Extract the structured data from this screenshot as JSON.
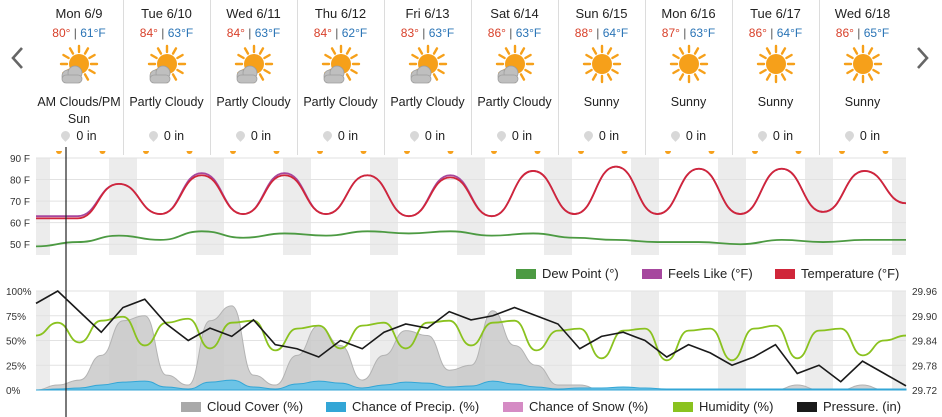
{
  "forecast": {
    "days": [
      {
        "date": "Mon 6/9",
        "high": "80°",
        "low": "61°F",
        "condition": "AM Clouds/PM Sun",
        "icon": "sun-cloud-icon",
        "precip": "0 in"
      },
      {
        "date": "Tue 6/10",
        "high": "84°",
        "low": "63°F",
        "condition": "Partly Cloudy",
        "icon": "sun-cloud-icon",
        "precip": "0 in"
      },
      {
        "date": "Wed 6/11",
        "high": "84°",
        "low": "63°F",
        "condition": "Partly Cloudy",
        "icon": "sun-cloud-icon",
        "precip": "0 in"
      },
      {
        "date": "Thu 6/12",
        "high": "84°",
        "low": "62°F",
        "condition": "Partly Cloudy",
        "icon": "sun-cloud-icon",
        "precip": "0 in"
      },
      {
        "date": "Fri 6/13",
        "high": "83°",
        "low": "63°F",
        "condition": "Partly Cloudy",
        "icon": "sun-cloud-icon",
        "precip": "0 in"
      },
      {
        "date": "Sat 6/14",
        "high": "86°",
        "low": "63°F",
        "condition": "Partly Cloudy",
        "icon": "sun-cloud-icon",
        "precip": "0 in"
      },
      {
        "date": "Sun 6/15",
        "high": "88°",
        "low": "64°F",
        "condition": "Sunny",
        "icon": "sun-icon",
        "precip": "0 in"
      },
      {
        "date": "Mon 6/16",
        "high": "87°",
        "low": "63°F",
        "condition": "Sunny",
        "icon": "sun-icon",
        "precip": "0 in"
      },
      {
        "date": "Tue 6/17",
        "high": "86°",
        "low": "64°F",
        "condition": "Sunny",
        "icon": "sun-icon",
        "precip": "0 in"
      },
      {
        "date": "Wed 6/18",
        "high": "86°",
        "low": "65°F",
        "condition": "Sunny",
        "icon": "sun-icon",
        "precip": "0 in"
      }
    ]
  },
  "colors": {
    "temperature": "#d0263a",
    "feels_like": "#a6479e",
    "dew_point": "#4c9a42",
    "cloud_cover": "#a9a9a9",
    "precip": "#33a6d6",
    "snow": "#d58bc4",
    "humidity": "#8ac21f",
    "pressure": "#1a1a1a",
    "sun": "#f6a01a"
  },
  "chart_data": [
    {
      "type": "line",
      "y_ticks": [
        "90 F",
        "80 F",
        "70 F",
        "60 F",
        "50 F"
      ],
      "ylim": [
        45,
        90
      ],
      "legend": [
        "Dew Point (°)",
        "Feels Like (°F)",
        "Temperature (°F)"
      ],
      "legend_position": "bottom-right",
      "series": [
        {
          "name": "Temperature (°F)",
          "values": [
            62,
            62,
            78,
            64,
            82,
            64,
            82,
            64,
            82,
            63,
            81,
            63,
            84,
            64,
            86,
            64,
            85,
            64,
            85,
            65,
            84,
            69
          ]
        },
        {
          "name": "Feels Like (°F)",
          "values": [
            63,
            63,
            78,
            64,
            83,
            64,
            83,
            64,
            82,
            63,
            82,
            63,
            84,
            64,
            86,
            64,
            85,
            64,
            85,
            65,
            84,
            69
          ]
        },
        {
          "name": "Dew Point (°)",
          "values": [
            49,
            51,
            54,
            52,
            56,
            53,
            55,
            54,
            56,
            55,
            56,
            54,
            55,
            53,
            52,
            51,
            51,
            50,
            52,
            51,
            52,
            52
          ]
        }
      ]
    },
    {
      "type": "area",
      "y_ticks_left": [
        "100%",
        "75%",
        "50%",
        "25%",
        "0%"
      ],
      "y_ticks_right": [
        "29.96",
        "29.90",
        "29.84",
        "29.78",
        "29.72"
      ],
      "legend": [
        "Cloud Cover (%)",
        "Chance of Precip. (%)",
        "Chance of Snow (%)",
        "Humidity (%)",
        "Pressure. (in)"
      ],
      "legend_position": "bottom-right",
      "series": [
        {
          "name": "Cloud Cover (%)",
          "values": [
            0,
            5,
            10,
            35,
            70,
            75,
            15,
            5,
            70,
            85,
            15,
            5,
            35,
            65,
            45,
            10,
            35,
            60,
            55,
            20,
            25,
            80,
            45,
            25,
            5,
            5,
            0,
            0,
            0,
            0,
            0,
            0,
            0,
            0,
            0,
            5,
            0,
            0,
            5,
            0,
            0
          ]
        },
        {
          "name": "Chance of Precip. (%)",
          "values": [
            0,
            1,
            2,
            5,
            8,
            9,
            3,
            1,
            8,
            10,
            3,
            1,
            6,
            9,
            7,
            2,
            5,
            8,
            7,
            3,
            4,
            9,
            6,
            3,
            1,
            2,
            2,
            3,
            2,
            1,
            1,
            1,
            1,
            1,
            1,
            1,
            1,
            1,
            1,
            1,
            1
          ]
        },
        {
          "name": "Humidity (%)",
          "values": [
            55,
            68,
            48,
            70,
            74,
            45,
            68,
            72,
            42,
            68,
            70,
            40,
            62,
            65,
            42,
            65,
            68,
            42,
            68,
            70,
            45,
            68,
            70,
            40,
            60,
            62,
            32,
            60,
            62,
            30,
            60,
            62,
            30,
            62,
            65,
            32,
            60,
            62,
            35,
            50,
            55
          ]
        },
        {
          "name": "Pressure. (in)",
          "values": [
            29.93,
            29.96,
            29.91,
            29.86,
            29.92,
            29.94,
            29.88,
            29.84,
            29.87,
            29.85,
            29.89,
            29.83,
            29.82,
            29.8,
            29.84,
            29.82,
            29.86,
            29.88,
            29.87,
            29.91,
            29.89,
            29.9,
            29.92,
            29.9,
            29.88,
            29.82,
            29.85,
            29.86,
            29.84,
            29.8,
            29.83,
            29.81,
            29.78,
            29.8,
            29.83,
            29.76,
            29.78,
            29.74,
            29.79,
            29.76,
            29.73
          ]
        }
      ]
    }
  ]
}
